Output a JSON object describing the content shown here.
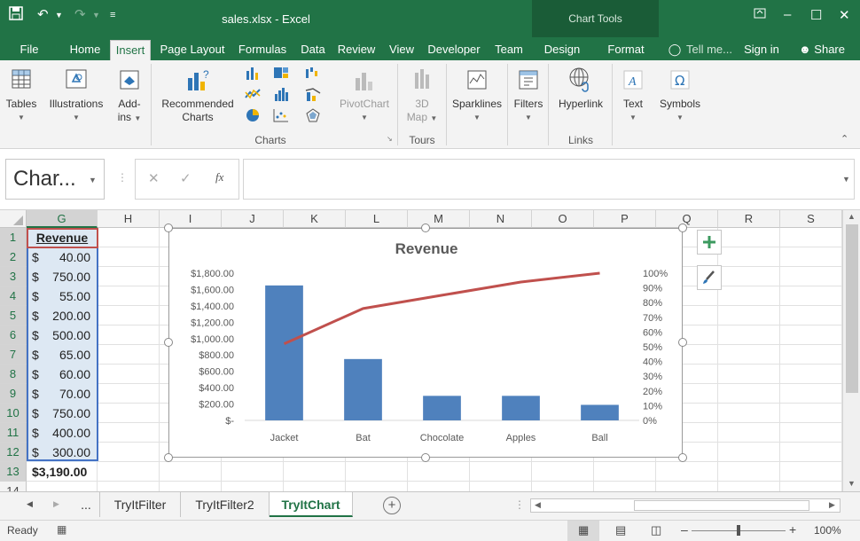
{
  "window": {
    "title": "sales.xlsx - Excel",
    "context_tab_group": "Chart Tools",
    "accent_color": "#217346"
  },
  "tabs": [
    {
      "label": "File"
    },
    {
      "label": "Home"
    },
    {
      "label": "Insert"
    },
    {
      "label": "Page Layout"
    },
    {
      "label": "Formulas"
    },
    {
      "label": "Data"
    },
    {
      "label": "Review"
    },
    {
      "label": "View"
    },
    {
      "label": "Developer"
    },
    {
      "label": "Team"
    },
    {
      "label": "Design"
    },
    {
      "label": "Format"
    }
  ],
  "active_tab": "Insert",
  "tell_me": "Tell me...",
  "sign_in": "Sign in",
  "share": "Share",
  "ribbon": {
    "tables": "Tables",
    "illustrations": "Illustrations",
    "addins_1": "Add-",
    "addins_2": "ins",
    "recommended_1": "Recommended",
    "recommended_2": "Charts",
    "pivotchart": "PivotChart",
    "map_1": "3D",
    "map_2": "Map",
    "sparklines": "Sparklines",
    "filters": "Filters",
    "hyperlink": "Hyperlink",
    "text": "Text",
    "symbols": "Symbols",
    "group_charts": "Charts",
    "group_tours": "Tours",
    "group_links": "Links"
  },
  "formula_bar": {
    "name_box": "Char...",
    "fx": "fx",
    "formula": ""
  },
  "columns": [
    "G",
    "H",
    "I",
    "J",
    "K",
    "L",
    "M",
    "N",
    "O",
    "P",
    "Q",
    "R",
    "S"
  ],
  "rows": [
    "1",
    "2",
    "3",
    "4",
    "5",
    "6",
    "7",
    "8",
    "9",
    "10",
    "11",
    "12",
    "13",
    "14"
  ],
  "cells": {
    "header": "Revenue",
    "currency": "$",
    "values": [
      "40.00",
      "750.00",
      "55.00",
      "200.00",
      "500.00",
      "65.00",
      "60.00",
      "70.00",
      "750.00",
      "400.00",
      "300.00"
    ],
    "total": "$3,190.00"
  },
  "chart_data": {
    "type": "bar",
    "title": "Revenue",
    "categories": [
      "Jacket",
      "Bat",
      "Chocolate",
      "Apples",
      "Ball"
    ],
    "series": [
      {
        "type": "bar",
        "values": [
          1650,
          750,
          300,
          300,
          190
        ],
        "color": "#4f81bd"
      },
      {
        "type": "line",
        "axis": "secondary",
        "values": [
          0.52,
          0.76,
          0.85,
          0.94,
          1.0
        ],
        "color": "#c0504d"
      }
    ],
    "y_ticks": [
      "$-",
      "$200.00",
      "$400.00",
      "$600.00",
      "$800.00",
      "$1,000.00",
      "$1,200.00",
      "$1,400.00",
      "$1,600.00",
      "$1,800.00"
    ],
    "ylim": [
      0,
      1800
    ],
    "y2_ticks": [
      "0%",
      "10%",
      "20%",
      "30%",
      "40%",
      "50%",
      "60%",
      "70%",
      "80%",
      "90%",
      "100%"
    ],
    "y2lim": [
      0,
      1.0
    ],
    "grid": false,
    "legend": "none"
  },
  "sheets": [
    {
      "label": "..."
    },
    {
      "label": "TryItFilter"
    },
    {
      "label": "TryItFilter2"
    },
    {
      "label": "TryItChart"
    }
  ],
  "active_sheet": "TryItChart",
  "status": {
    "ready": "Ready",
    "zoom": "100%"
  }
}
